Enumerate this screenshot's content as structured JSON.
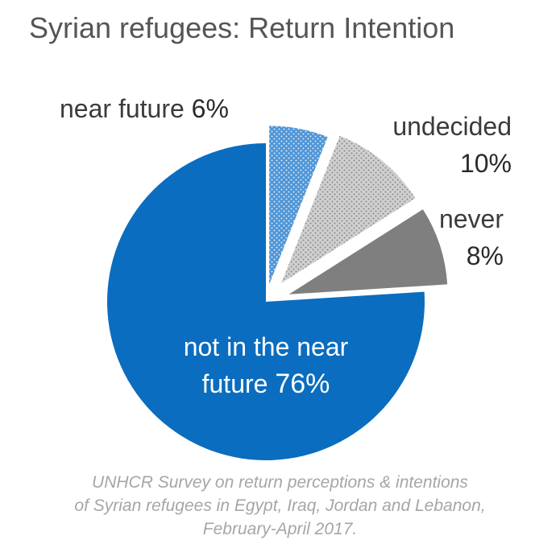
{
  "chart_data": {
    "type": "pie",
    "title": "Syrian refugees: Return Intention",
    "slices": [
      {
        "label": "near future",
        "value": 6,
        "pct_label": "6%",
        "color": "#4f95d6",
        "pattern": "dotted-blue"
      },
      {
        "label": "undecided",
        "value": 10,
        "pct_label": "10%",
        "color": "#bfbfbf",
        "pattern": "dotted-grey"
      },
      {
        "label": "never",
        "value": 8,
        "pct_label": "8%",
        "color": "#7f7f7f",
        "pattern": "solid"
      },
      {
        "label": "not in the near future",
        "value": 76,
        "pct_label": "76%",
        "color": "#0a6dbf",
        "pattern": "solid"
      }
    ],
    "legend": "none",
    "source_lines": [
      "UNHCR Survey on return perceptions & intentions",
      "of Syrian refugees in Egypt, Iraq, Jordan and Lebanon,",
      "February-April 2017."
    ]
  },
  "labels": {
    "near_future_text": "near future",
    "undecided_text": "undecided",
    "never_text": "never",
    "not_line1": "not in the near",
    "not_line2": "future"
  }
}
